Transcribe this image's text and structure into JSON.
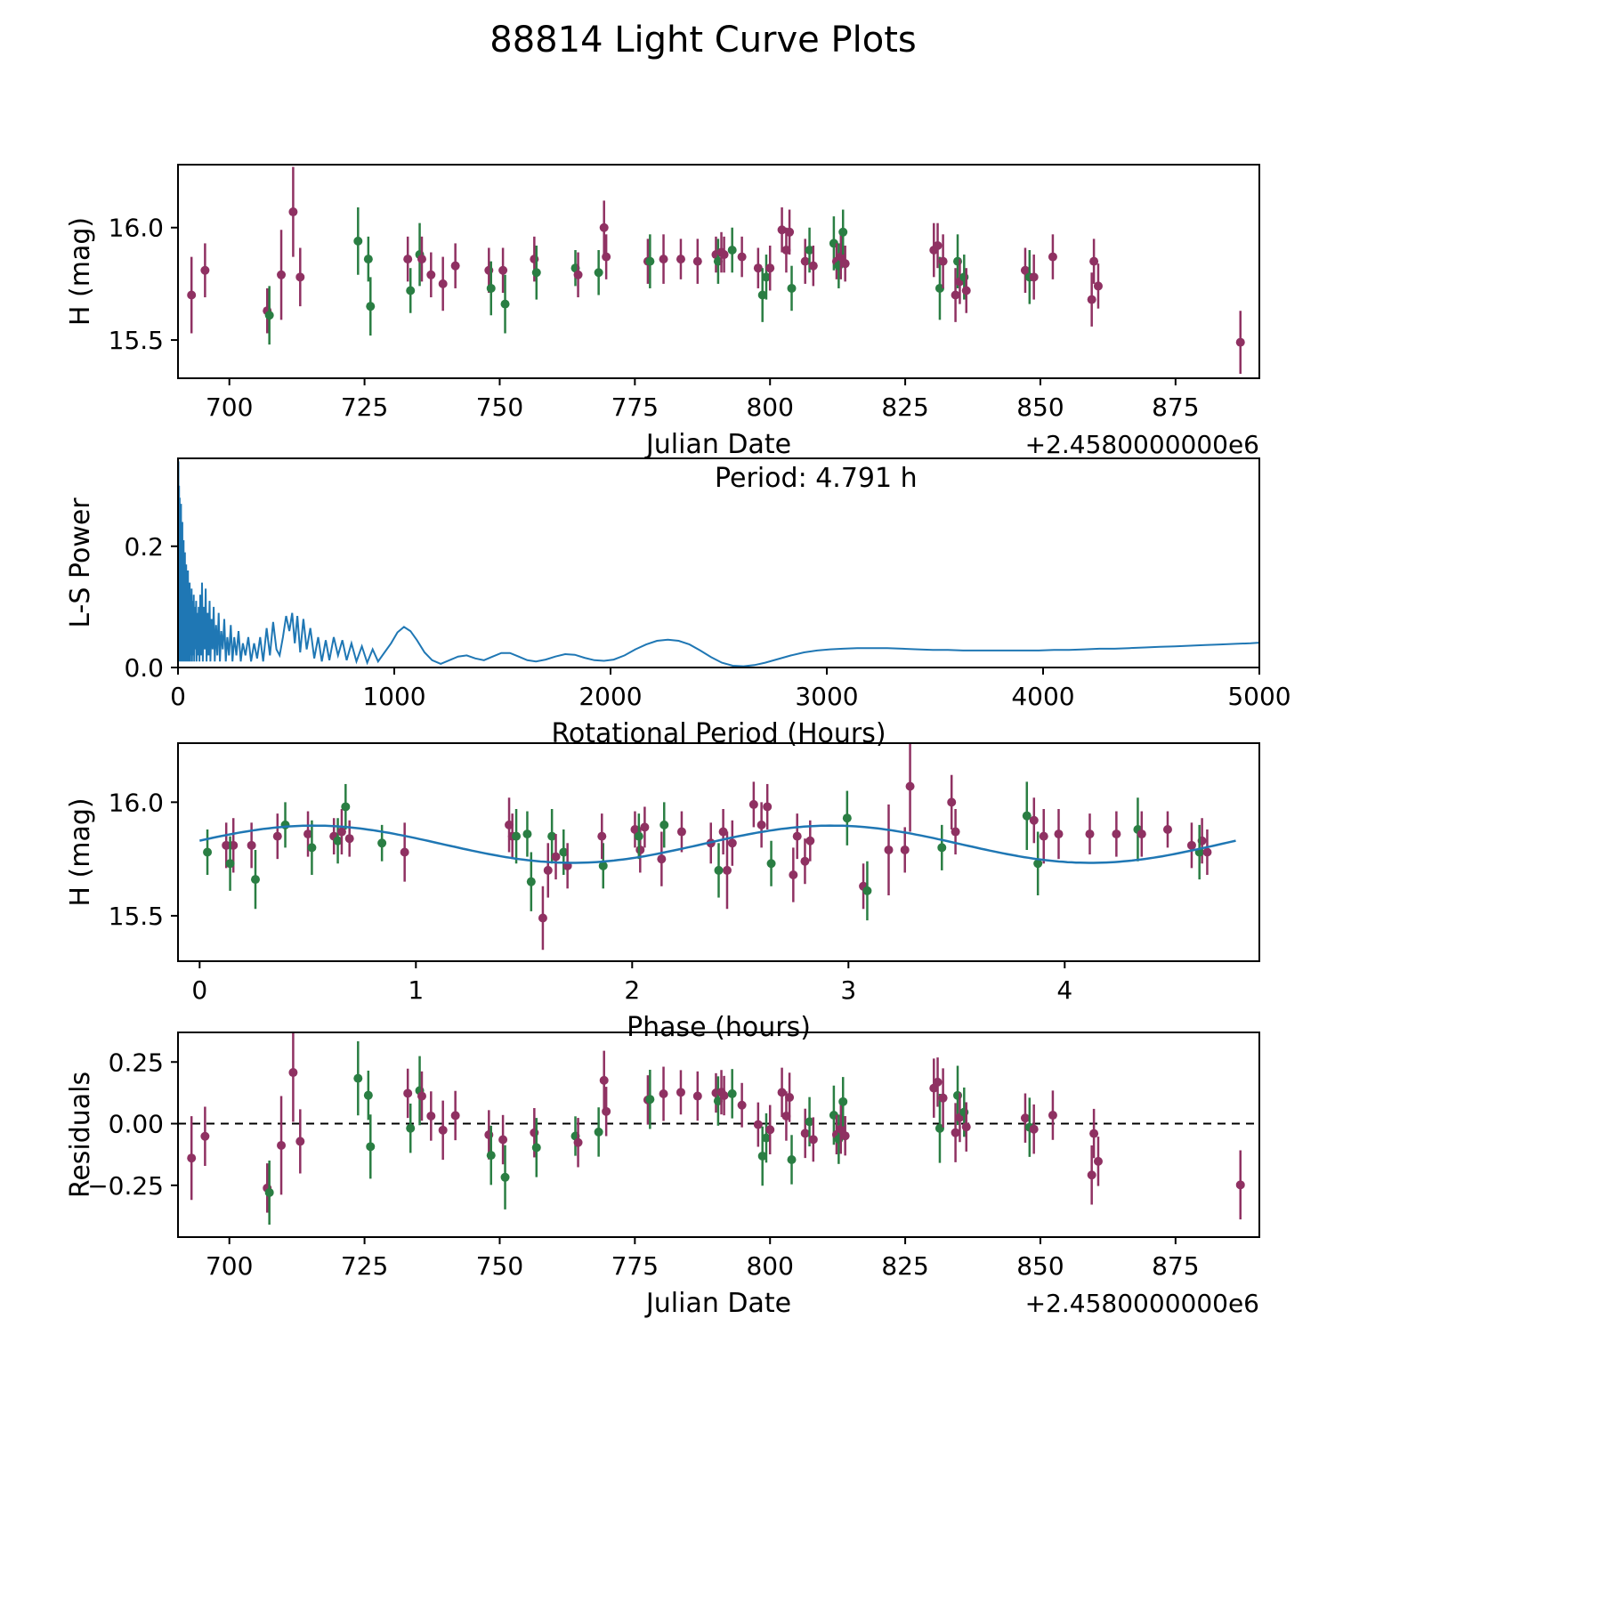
{
  "figure": {
    "title": "88814 Light Curve Plots"
  },
  "colors": {
    "purple": "#8f3162",
    "green": "#2a7e43",
    "line_blue": "#1f77b4",
    "axis": "#000000"
  },
  "period_hours": 4.791,
  "fit_model": {
    "mean": 15.815,
    "amplitude": 0.082,
    "harmonic": 2,
    "phase_offset_rad": 0.19
  },
  "points": [
    [
      693.0,
      15.7,
      0.17,
      "p"
    ],
    [
      695.5,
      15.81,
      0.12,
      "p"
    ],
    [
      707.0,
      15.63,
      0.1,
      "p"
    ],
    [
      707.4,
      15.61,
      0.13,
      "g"
    ],
    [
      709.6,
      15.79,
      0.2,
      "p"
    ],
    [
      711.8,
      16.07,
      0.2,
      "p"
    ],
    [
      713.1,
      15.78,
      0.13,
      "p"
    ],
    [
      723.8,
      15.94,
      0.15,
      "g"
    ],
    [
      725.7,
      15.86,
      0.1,
      "g"
    ],
    [
      726.1,
      15.65,
      0.13,
      "g"
    ],
    [
      733.0,
      15.86,
      0.1,
      "p"
    ],
    [
      733.5,
      15.72,
      0.1,
      "g"
    ],
    [
      735.2,
      15.88,
      0.14,
      "g"
    ],
    [
      735.6,
      15.86,
      0.1,
      "p"
    ],
    [
      737.3,
      15.79,
      0.1,
      "p"
    ],
    [
      739.5,
      15.75,
      0.12,
      "p"
    ],
    [
      741.8,
      15.83,
      0.1,
      "p"
    ],
    [
      748.0,
      15.81,
      0.1,
      "p"
    ],
    [
      748.4,
      15.73,
      0.12,
      "g"
    ],
    [
      750.6,
      15.81,
      0.1,
      "p"
    ],
    [
      751.0,
      15.66,
      0.13,
      "g"
    ],
    [
      756.4,
      15.86,
      0.1,
      "p"
    ],
    [
      756.8,
      15.8,
      0.12,
      "g"
    ],
    [
      764.0,
      15.82,
      0.08,
      "g"
    ],
    [
      764.5,
      15.79,
      0.1,
      "p"
    ],
    [
      768.3,
      15.8,
      0.1,
      "g"
    ],
    [
      769.3,
      16.0,
      0.12,
      "p"
    ],
    [
      769.7,
      15.87,
      0.1,
      "p"
    ],
    [
      777.4,
      15.85,
      0.1,
      "p"
    ],
    [
      777.8,
      15.85,
      0.12,
      "g"
    ],
    [
      780.3,
      15.86,
      0.11,
      "p"
    ],
    [
      783.5,
      15.86,
      0.09,
      "p"
    ],
    [
      786.6,
      15.85,
      0.1,
      "p"
    ],
    [
      790.0,
      15.88,
      0.08,
      "p"
    ],
    [
      790.4,
      15.85,
      0.1,
      "g"
    ],
    [
      791.0,
      15.89,
      0.09,
      "p"
    ],
    [
      791.5,
      15.88,
      0.08,
      "p"
    ],
    [
      793.0,
      15.9,
      0.1,
      "g"
    ],
    [
      794.8,
      15.87,
      0.09,
      "p"
    ],
    [
      797.8,
      15.82,
      0.09,
      "p"
    ],
    [
      798.6,
      15.7,
      0.12,
      "g"
    ],
    [
      799.3,
      15.78,
      0.1,
      "g"
    ],
    [
      800.0,
      15.82,
      0.1,
      "p"
    ],
    [
      802.2,
      15.99,
      0.1,
      "p"
    ],
    [
      803.0,
      15.9,
      0.1,
      "p"
    ],
    [
      803.6,
      15.98,
      0.1,
      "p"
    ],
    [
      804.0,
      15.73,
      0.1,
      "g"
    ],
    [
      806.5,
      15.85,
      0.1,
      "p"
    ],
    [
      807.3,
      15.9,
      0.1,
      "g"
    ],
    [
      808.0,
      15.83,
      0.09,
      "p"
    ],
    [
      811.8,
      15.93,
      0.12,
      "g"
    ],
    [
      812.3,
      15.85,
      0.08,
      "p"
    ],
    [
      812.7,
      15.83,
      0.1,
      "g"
    ],
    [
      813.1,
      15.87,
      0.1,
      "p"
    ],
    [
      813.5,
      15.98,
      0.1,
      "g"
    ],
    [
      813.9,
      15.84,
      0.08,
      "p"
    ],
    [
      830.3,
      15.9,
      0.12,
      "p"
    ],
    [
      831.0,
      15.92,
      0.1,
      "p"
    ],
    [
      831.4,
      15.73,
      0.14,
      "g"
    ],
    [
      832.0,
      15.85,
      0.12,
      "p"
    ],
    [
      834.3,
      15.7,
      0.12,
      "p"
    ],
    [
      834.7,
      15.85,
      0.12,
      "g"
    ],
    [
      835.1,
      15.76,
      0.1,
      "p"
    ],
    [
      835.9,
      15.78,
      0.1,
      "g"
    ],
    [
      836.3,
      15.72,
      0.1,
      "p"
    ],
    [
      847.2,
      15.81,
      0.1,
      "p"
    ],
    [
      848.0,
      15.78,
      0.12,
      "g"
    ],
    [
      848.8,
      15.78,
      0.1,
      "p"
    ],
    [
      852.3,
      15.87,
      0.1,
      "p"
    ],
    [
      859.5,
      15.68,
      0.12,
      "p"
    ],
    [
      859.9,
      15.85,
      0.1,
      "p"
    ],
    [
      860.7,
      15.74,
      0.1,
      "p"
    ],
    [
      887.0,
      15.49,
      0.14,
      "p"
    ]
  ],
  "chart_data": [
    {
      "id": "lightcurve",
      "type": "scatter",
      "xlabel": "Julian Date",
      "ylabel": "H (mag)",
      "x_offset_text": "+2.4580000000e6",
      "xlim": [
        690.5,
        890.5
      ],
      "ylim": [
        15.33,
        16.28
      ],
      "xticks": [
        700,
        725,
        750,
        775,
        800,
        825,
        850,
        875
      ],
      "yticks": [
        15.5,
        16.0
      ],
      "ytick_decimals": 1,
      "source": "points",
      "x_field": "jd",
      "y_field": "mag"
    },
    {
      "id": "periodogram",
      "type": "line",
      "xlabel": "Rotational Period (Hours)",
      "ylabel": "L-S Power",
      "annotation": "Period: 4.791 h",
      "xlim": [
        0,
        5000
      ],
      "ylim": [
        0,
        0.345
      ],
      "xticks": [
        0,
        1000,
        2000,
        3000,
        4000,
        5000
      ],
      "yticks": [
        0.0,
        0.2
      ],
      "ytick_decimals": 1,
      "xy": [
        [
          1,
          0.02
        ],
        [
          2,
          0.34
        ],
        [
          3,
          0.01
        ],
        [
          5,
          0.3
        ],
        [
          6,
          0.02
        ],
        [
          8,
          0.28
        ],
        [
          9,
          0.01
        ],
        [
          11,
          0.25
        ],
        [
          12,
          0.03
        ],
        [
          14,
          0.27
        ],
        [
          15,
          0.01
        ],
        [
          17,
          0.22
        ],
        [
          18,
          0.02
        ],
        [
          20,
          0.24
        ],
        [
          21,
          0.01
        ],
        [
          23,
          0.2
        ],
        [
          24,
          0.03
        ],
        [
          26,
          0.21
        ],
        [
          27,
          0.01
        ],
        [
          29,
          0.18
        ],
        [
          30,
          0.02
        ],
        [
          32,
          0.19
        ],
        [
          33,
          0.01
        ],
        [
          35,
          0.16
        ],
        [
          36,
          0.02
        ],
        [
          38,
          0.17
        ],
        [
          40,
          0.01
        ],
        [
          42,
          0.15
        ],
        [
          44,
          0.02
        ],
        [
          46,
          0.16
        ],
        [
          48,
          0.01
        ],
        [
          50,
          0.13
        ],
        [
          52,
          0.03
        ],
        [
          54,
          0.14
        ],
        [
          56,
          0.01
        ],
        [
          58,
          0.12
        ],
        [
          60,
          0.02
        ],
        [
          63,
          0.13
        ],
        [
          65,
          0.01
        ],
        [
          68,
          0.11
        ],
        [
          70,
          0.02
        ],
        [
          73,
          0.12
        ],
        [
          75,
          0.01
        ],
        [
          78,
          0.1
        ],
        [
          80,
          0.03
        ],
        [
          84,
          0.11
        ],
        [
          86,
          0.01
        ],
        [
          90,
          0.09
        ],
        [
          93,
          0.02
        ],
        [
          96,
          0.1
        ],
        [
          99,
          0.01
        ],
        [
          103,
          0.12
        ],
        [
          107,
          0.02
        ],
        [
          111,
          0.14
        ],
        [
          115,
          0.01
        ],
        [
          120,
          0.1
        ],
        [
          124,
          0.03
        ],
        [
          128,
          0.13
        ],
        [
          132,
          0.01
        ],
        [
          137,
          0.09
        ],
        [
          141,
          0.02
        ],
        [
          146,
          0.11
        ],
        [
          150,
          0.01
        ],
        [
          155,
          0.08
        ],
        [
          160,
          0.03
        ],
        [
          165,
          0.1
        ],
        [
          170,
          0.01
        ],
        [
          176,
          0.07
        ],
        [
          182,
          0.02
        ],
        [
          188,
          0.09
        ],
        [
          194,
          0.01
        ],
        [
          200,
          0.06
        ],
        [
          207,
          0.03
        ],
        [
          214,
          0.08
        ],
        [
          221,
          0.01
        ],
        [
          228,
          0.05
        ],
        [
          236,
          0.02
        ],
        [
          244,
          0.07
        ],
        [
          252,
          0.01
        ],
        [
          260,
          0.05
        ],
        [
          270,
          0.02
        ],
        [
          280,
          0.06
        ],
        [
          290,
          0.01
        ],
        [
          300,
          0.04
        ],
        [
          312,
          0.02
        ],
        [
          325,
          0.05
        ],
        [
          338,
          0.01
        ],
        [
          352,
          0.04
        ],
        [
          366,
          0.015
        ],
        [
          380,
          0.05
        ],
        [
          394,
          0.01
        ],
        [
          410,
          0.065
        ],
        [
          425,
          0.02
        ],
        [
          440,
          0.075
        ],
        [
          455,
          0.03
        ],
        [
          470,
          0.02
        ],
        [
          485,
          0.05
        ],
        [
          500,
          0.085
        ],
        [
          515,
          0.06
        ],
        [
          528,
          0.09
        ],
        [
          540,
          0.04
        ],
        [
          552,
          0.085
        ],
        [
          565,
          0.025
        ],
        [
          580,
          0.08
        ],
        [
          595,
          0.03
        ],
        [
          612,
          0.065
        ],
        [
          630,
          0.015
        ],
        [
          648,
          0.05
        ],
        [
          665,
          0.01
        ],
        [
          683,
          0.045
        ],
        [
          700,
          0.012
        ],
        [
          720,
          0.05
        ],
        [
          740,
          0.02
        ],
        [
          760,
          0.045
        ],
        [
          780,
          0.012
        ],
        [
          802,
          0.04
        ],
        [
          825,
          0.01
        ],
        [
          850,
          0.035
        ],
        [
          875,
          0.008
        ],
        [
          900,
          0.03
        ],
        [
          925,
          0.01
        ],
        [
          955,
          0.025
        ],
        [
          985,
          0.04
        ],
        [
          1015,
          0.058
        ],
        [
          1045,
          0.067
        ],
        [
          1075,
          0.06
        ],
        [
          1105,
          0.045
        ],
        [
          1140,
          0.025
        ],
        [
          1175,
          0.012
        ],
        [
          1215,
          0.006
        ],
        [
          1255,
          0.012
        ],
        [
          1295,
          0.018
        ],
        [
          1335,
          0.02
        ],
        [
          1375,
          0.015
        ],
        [
          1415,
          0.012
        ],
        [
          1455,
          0.018
        ],
        [
          1495,
          0.024
        ],
        [
          1535,
          0.024
        ],
        [
          1575,
          0.018
        ],
        [
          1615,
          0.012
        ],
        [
          1655,
          0.01
        ],
        [
          1700,
          0.013
        ],
        [
          1745,
          0.018
        ],
        [
          1790,
          0.022
        ],
        [
          1835,
          0.021
        ],
        [
          1880,
          0.016
        ],
        [
          1925,
          0.012
        ],
        [
          1970,
          0.011
        ],
        [
          2015,
          0.013
        ],
        [
          2065,
          0.02
        ],
        [
          2115,
          0.03
        ],
        [
          2165,
          0.038
        ],
        [
          2215,
          0.044
        ],
        [
          2265,
          0.046
        ],
        [
          2315,
          0.044
        ],
        [
          2365,
          0.038
        ],
        [
          2415,
          0.028
        ],
        [
          2465,
          0.017
        ],
        [
          2515,
          0.008
        ],
        [
          2565,
          0.003
        ],
        [
          2615,
          0.002
        ],
        [
          2665,
          0.004
        ],
        [
          2715,
          0.008
        ],
        [
          2775,
          0.014
        ],
        [
          2835,
          0.02
        ],
        [
          2895,
          0.025
        ],
        [
          2955,
          0.028
        ],
        [
          3015,
          0.03
        ],
        [
          3075,
          0.031
        ],
        [
          3140,
          0.032
        ],
        [
          3210,
          0.032
        ],
        [
          3280,
          0.032
        ],
        [
          3350,
          0.031
        ],
        [
          3420,
          0.03
        ],
        [
          3490,
          0.029
        ],
        [
          3560,
          0.029
        ],
        [
          3630,
          0.028
        ],
        [
          3700,
          0.028
        ],
        [
          3770,
          0.028
        ],
        [
          3840,
          0.028
        ],
        [
          3910,
          0.028
        ],
        [
          3980,
          0.028
        ],
        [
          4050,
          0.029
        ],
        [
          4120,
          0.029
        ],
        [
          4190,
          0.03
        ],
        [
          4260,
          0.031
        ],
        [
          4330,
          0.031
        ],
        [
          4400,
          0.032
        ],
        [
          4470,
          0.033
        ],
        [
          4540,
          0.034
        ],
        [
          4610,
          0.035
        ],
        [
          4680,
          0.036
        ],
        [
          4750,
          0.037
        ],
        [
          4820,
          0.038
        ],
        [
          4890,
          0.039
        ],
        [
          4960,
          0.04
        ],
        [
          5000,
          0.041
        ]
      ]
    },
    {
      "id": "phased",
      "type": "scatter",
      "xlabel": "Phase (hours)",
      "ylabel": "H (mag)",
      "xlim": [
        -0.1,
        4.9
      ],
      "ylim": [
        15.3,
        16.26
      ],
      "xticks": [
        0,
        1,
        2,
        3,
        4
      ],
      "yticks": [
        15.5,
        16.0
      ],
      "ytick_decimals": 1,
      "source": "points",
      "x_field": "ph",
      "y_field": "mag",
      "show_fit_curve": true
    },
    {
      "id": "residuals",
      "type": "scatter",
      "xlabel": "Julian Date",
      "ylabel": "Residuals",
      "x_offset_text": "+2.4580000000e6",
      "xlim": [
        690.5,
        890.5
      ],
      "ylim": [
        -0.46,
        0.37
      ],
      "xticks": [
        700,
        725,
        750,
        775,
        800,
        825,
        850,
        875
      ],
      "yticks": [
        -0.25,
        0.0,
        0.25
      ],
      "ytick_decimals": 2,
      "source": "points",
      "x_field": "jd",
      "y_field": "res",
      "hline": 0
    }
  ]
}
